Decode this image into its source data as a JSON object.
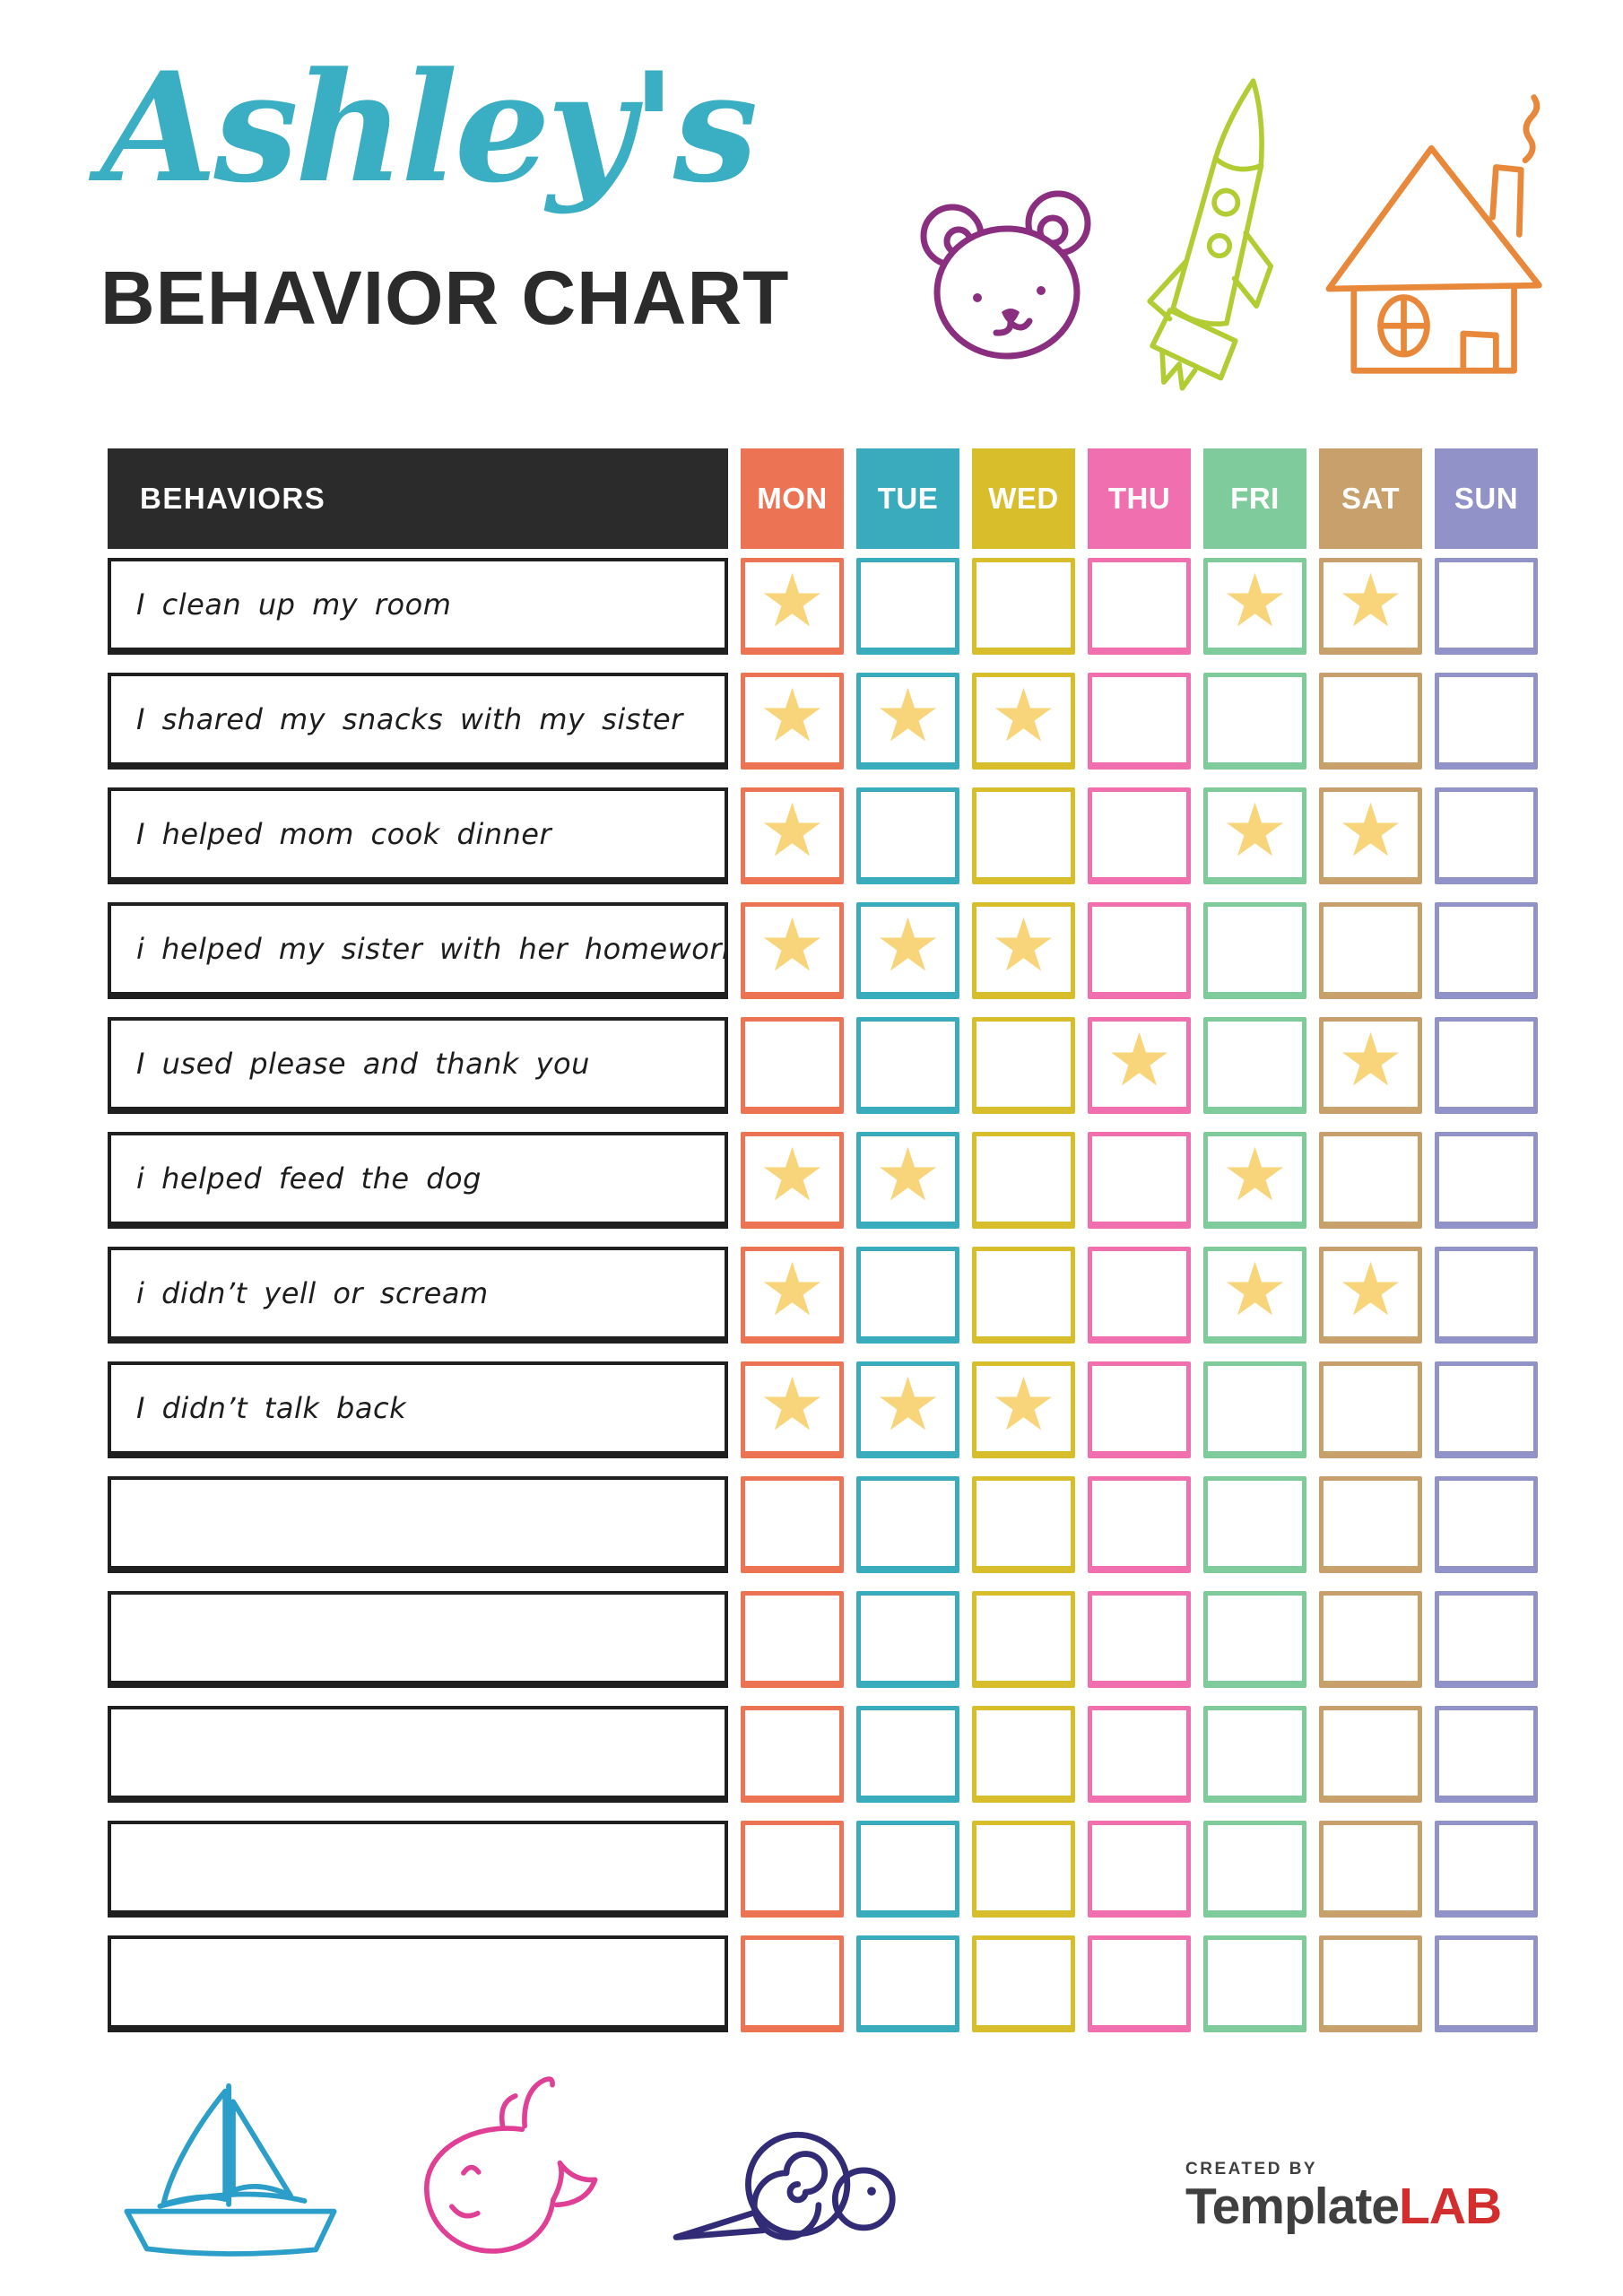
{
  "page": {
    "owner_name": "Ashley's",
    "title": "BEHAVIOR CHART"
  },
  "table": {
    "behaviors_header": "BEHAVIORS",
    "days": [
      {
        "label": "MON",
        "color": "#ED7355"
      },
      {
        "label": "TUE",
        "color": "#39ABBD"
      },
      {
        "label": "WED",
        "color": "#D9BE2B"
      },
      {
        "label": "THU",
        "color": "#F06FAF"
      },
      {
        "label": "FRI",
        "color": "#7FCB9B"
      },
      {
        "label": "SAT",
        "color": "#C7A06C"
      },
      {
        "label": "SUN",
        "color": "#9092C8"
      }
    ],
    "rows": [
      {
        "behavior": "I clean up my room",
        "stars": [
          1,
          0,
          0,
          0,
          1,
          1,
          0
        ]
      },
      {
        "behavior": "I shared my snacks with my sister",
        "stars": [
          1,
          1,
          1,
          0,
          0,
          0,
          0
        ]
      },
      {
        "behavior": "I helped mom cook dinner",
        "stars": [
          1,
          0,
          0,
          0,
          1,
          1,
          0
        ]
      },
      {
        "behavior": "i helped my sister with her homework",
        "stars": [
          1,
          1,
          1,
          0,
          0,
          0,
          0
        ]
      },
      {
        "behavior": "I used please and thank you",
        "stars": [
          0,
          0,
          0,
          1,
          0,
          1,
          0
        ]
      },
      {
        "behavior": "i helped feed the dog",
        "stars": [
          1,
          1,
          0,
          0,
          1,
          0,
          0
        ]
      },
      {
        "behavior": "i didn’t yell or scream",
        "stars": [
          1,
          0,
          0,
          0,
          1,
          1,
          0
        ]
      },
      {
        "behavior": "I didn’t talk back",
        "stars": [
          1,
          1,
          1,
          0,
          0,
          0,
          0
        ]
      },
      {
        "behavior": "",
        "stars": [
          0,
          0,
          0,
          0,
          0,
          0,
          0
        ]
      },
      {
        "behavior": "",
        "stars": [
          0,
          0,
          0,
          0,
          0,
          0,
          0
        ]
      },
      {
        "behavior": "",
        "stars": [
          0,
          0,
          0,
          0,
          0,
          0,
          0
        ]
      },
      {
        "behavior": "",
        "stars": [
          0,
          0,
          0,
          0,
          0,
          0,
          0
        ]
      },
      {
        "behavior": "",
        "stars": [
          0,
          0,
          0,
          0,
          0,
          0,
          0
        ]
      }
    ],
    "star_glyph": "★",
    "star_color": "#F8D47A"
  },
  "footer": {
    "created_by": "CREATED BY",
    "brand_primary": "Template",
    "brand_accent": "LAB"
  },
  "colors": {
    "title_script": "#3AAEC2",
    "title_text": "#2B2B2B",
    "header_bg": "#2B2B2B",
    "bear": "#8A2F80",
    "rocket": "#B2CC33",
    "house": "#E8883B",
    "sailboat": "#2B9FC9",
    "whale": "#E03F96",
    "snail": "#322C76",
    "logo_gray": "#3F3F3F",
    "logo_red": "#D22E2E"
  }
}
